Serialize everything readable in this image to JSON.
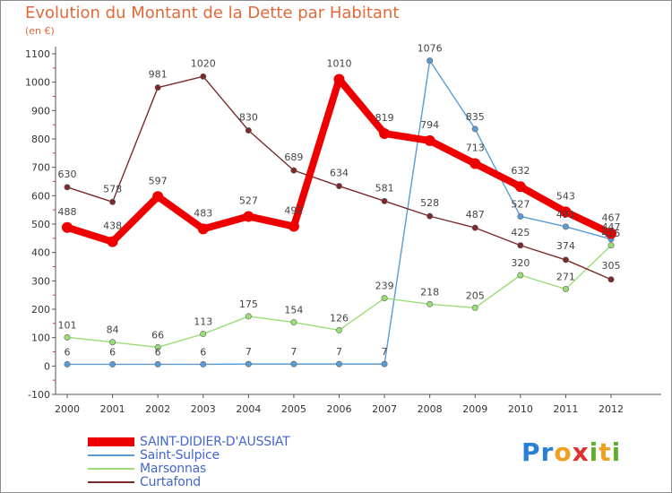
{
  "header": {
    "title": "Evolution du Montant de la Dette par Habitant",
    "unit": "(en €)"
  },
  "logo": {
    "letters": [
      "P",
      "r",
      "o",
      "x",
      "i",
      "t",
      "i"
    ],
    "colors": [
      "#2b7fd4",
      "#2b7fd4",
      "#f0a020",
      "#e03030",
      "#60b030",
      "#f0a020",
      "#60b030"
    ]
  },
  "chart_data": {
    "type": "line",
    "title": "Evolution du Montant de la Dette par Habitant",
    "ylabel": "(en €)",
    "xlabel": "",
    "ylim": [
      -100,
      1100
    ],
    "yticks": [
      -100,
      0,
      100,
      200,
      300,
      400,
      500,
      600,
      700,
      800,
      900,
      1000,
      1100
    ],
    "grid": false,
    "legend": "bottom-left",
    "x": [
      "2000",
      "2001",
      "2002",
      "2003",
      "2004",
      "2005",
      "2006",
      "2007",
      "2008",
      "2009",
      "2010",
      "2011",
      "2012"
    ],
    "series": [
      {
        "name": "SAINT-DIDIER-D'AUSSIAT",
        "color": "#ee0000",
        "values": [
          488,
          438,
          597,
          483,
          527,
          492,
          1010,
          819,
          794,
          713,
          632,
          543,
          467
        ],
        "labels": [
          "488",
          "438",
          "597",
          "483",
          "527",
          "492",
          "1010",
          "819",
          "794",
          "713",
          "632",
          "543",
          "467"
        ]
      },
      {
        "name": "Saint-Sulpice",
        "color": "#5b9bd5",
        "values": [
          6,
          6,
          6,
          6,
          7,
          7,
          7,
          7,
          1076,
          835,
          527,
          491,
          447
        ],
        "labels": [
          "6",
          "6",
          "6",
          "6",
          "7",
          "7",
          "7",
          "7",
          "1076",
          "835",
          "527",
          "491",
          "447"
        ]
      },
      {
        "name": "Marsonnas",
        "color": "#99dd77",
        "values": [
          101,
          84,
          66,
          113,
          175,
          154,
          126,
          239,
          218,
          205,
          320,
          271,
          425
        ],
        "labels": [
          "101",
          "84",
          "66",
          "113",
          "175",
          "154",
          "126",
          "239",
          "218",
          "205",
          "320",
          "271",
          "425"
        ]
      },
      {
        "name": "Curtafond",
        "color": "#7a2a2a",
        "values": [
          630,
          578,
          981,
          1020,
          830,
          689,
          634,
          581,
          528,
          487,
          425,
          374,
          305
        ],
        "labels": [
          "630",
          "578",
          "981",
          "1020",
          "830",
          "689",
          "634",
          "581",
          "528",
          "487",
          "425",
          "374",
          "305"
        ]
      }
    ]
  }
}
